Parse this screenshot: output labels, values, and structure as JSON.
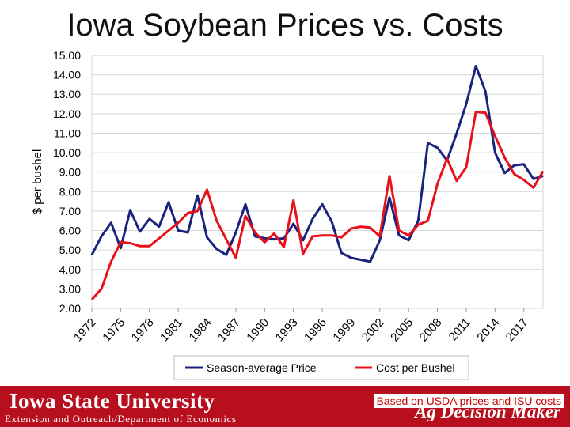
{
  "page": {
    "title": "Iowa Soybean Prices vs. Costs"
  },
  "chart_data": {
    "type": "line",
    "title": "Iowa Soybean Prices vs. Costs",
    "xlabel": "",
    "ylabel": "$ per bushel",
    "ylim": [
      2,
      15
    ],
    "yticks": [
      "2.00",
      "3.00",
      "4.00",
      "5.00",
      "6.00",
      "7.00",
      "8.00",
      "9.00",
      "10.00",
      "11.00",
      "12.00",
      "13.00",
      "14.00",
      "15.00"
    ],
    "xlim": [
      1972,
      2019
    ],
    "xticks": [
      1972,
      1975,
      1978,
      1981,
      1984,
      1987,
      1990,
      1993,
      1996,
      1999,
      2002,
      2005,
      2008,
      2011,
      2014,
      2017
    ],
    "x": [
      1972,
      1973,
      1974,
      1975,
      1976,
      1977,
      1978,
      1979,
      1980,
      1981,
      1982,
      1983,
      1984,
      1985,
      1986,
      1987,
      1988,
      1989,
      1990,
      1991,
      1992,
      1993,
      1994,
      1995,
      1996,
      1997,
      1998,
      1999,
      2000,
      2001,
      2002,
      2003,
      2004,
      2005,
      2006,
      2007,
      2008,
      2009,
      2010,
      2011,
      2012,
      2013,
      2014,
      2015,
      2016,
      2017,
      2018,
      2019
    ],
    "series": [
      {
        "name": "Season-average Price",
        "color": "#1a237e",
        "values": [
          4.75,
          5.7,
          6.4,
          5.1,
          7.05,
          5.95,
          6.6,
          6.2,
          7.45,
          6.0,
          5.9,
          7.8,
          5.65,
          5.05,
          4.75,
          5.9,
          7.35,
          5.7,
          5.6,
          5.55,
          5.6,
          6.35,
          5.5,
          6.6,
          7.35,
          6.45,
          4.85,
          4.6,
          4.5,
          4.4,
          5.5,
          7.7,
          5.75,
          5.5,
          6.5,
          10.5,
          10.25,
          9.6,
          11.0,
          12.5,
          14.45,
          13.15,
          10.0,
          8.95,
          9.35,
          9.4,
          8.65,
          8.8
        ]
      },
      {
        "name": "Cost per Bushel",
        "color": "#e8101a",
        "values": [
          2.45,
          3.0,
          4.4,
          5.4,
          5.35,
          5.2,
          5.2,
          5.6,
          6.0,
          6.4,
          6.9,
          7.0,
          8.1,
          6.5,
          5.55,
          4.6,
          6.75,
          5.9,
          5.4,
          5.85,
          5.15,
          7.55,
          4.8,
          5.7,
          5.75,
          5.75,
          5.65,
          6.1,
          6.2,
          6.15,
          5.7,
          8.8,
          6.0,
          5.75,
          6.3,
          6.5,
          8.4,
          9.7,
          8.55,
          9.25,
          12.1,
          12.05,
          10.85,
          9.75,
          8.9,
          8.6,
          8.2,
          9.05
        ]
      }
    ],
    "legend": [
      "Season-average Price",
      "Cost per Bushel"
    ],
    "legend_position": "bottom"
  },
  "footer": {
    "university": "Iowa State University",
    "department": "Extension and Outreach/Department of Economics",
    "brand": "Ag Decision Maker",
    "source_note": "Based on USDA prices and ISU costs"
  }
}
